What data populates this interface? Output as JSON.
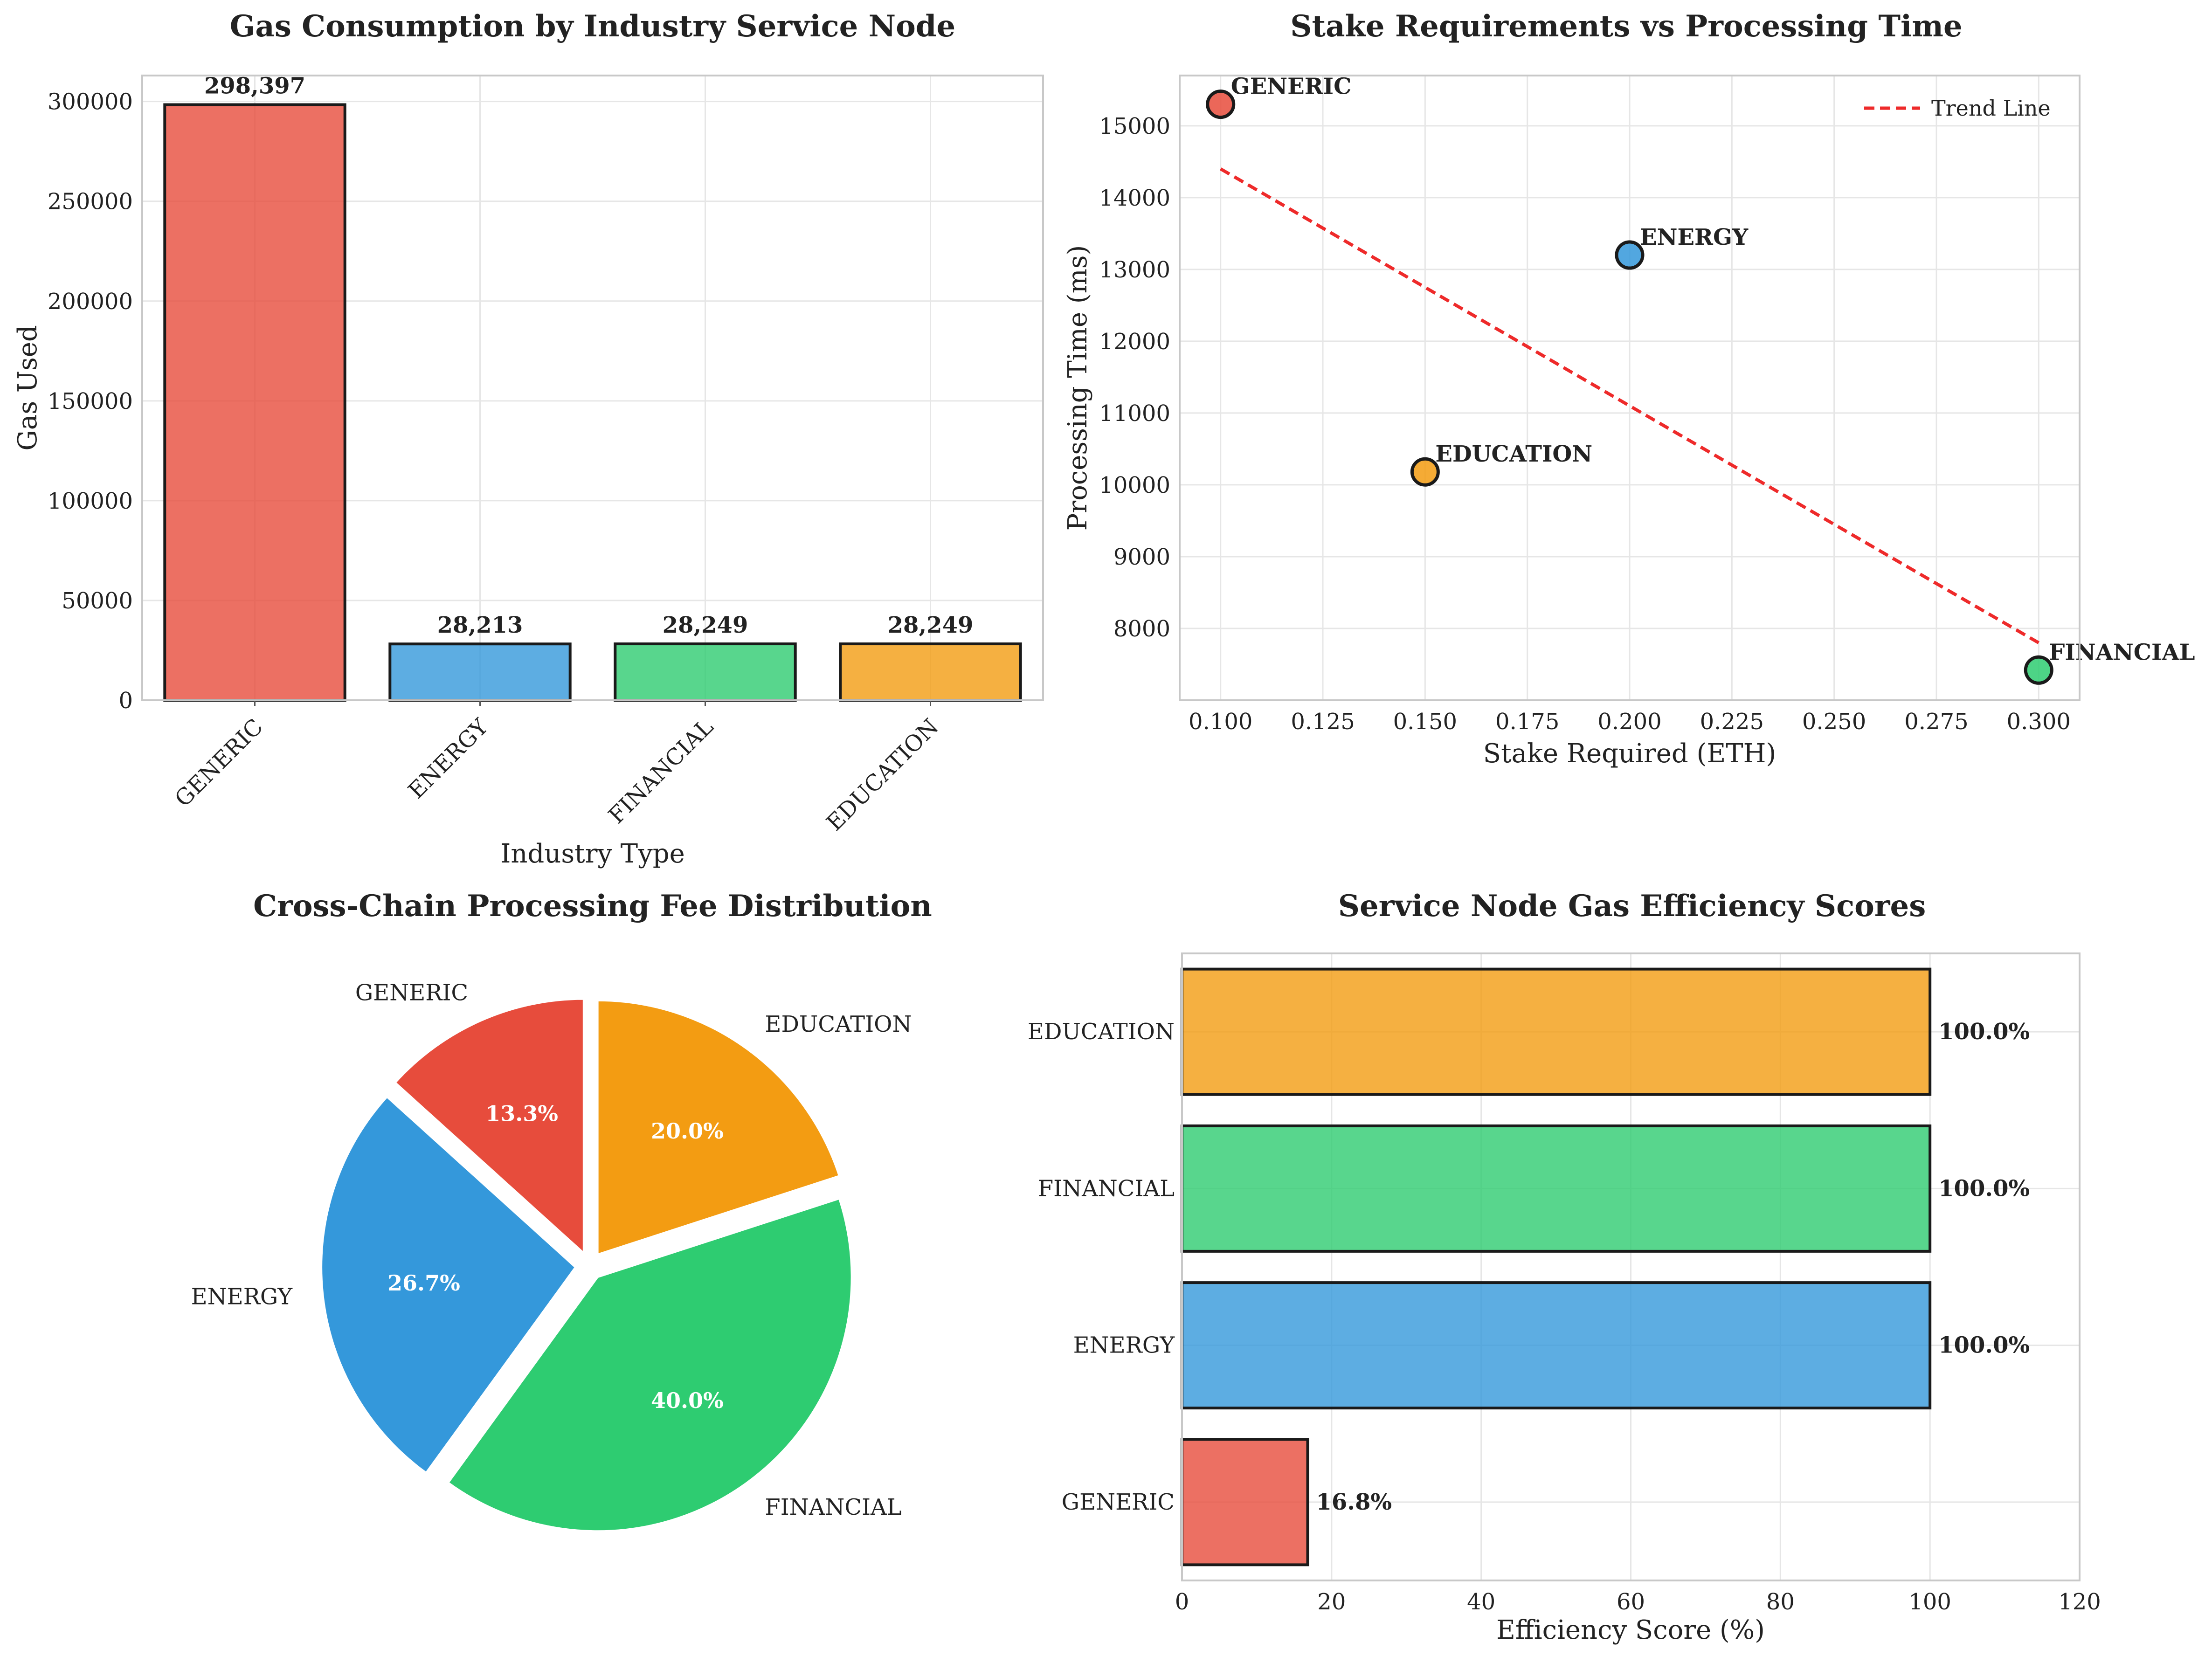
{
  "colors": {
    "GENERIC": "#e74c3c",
    "ENERGY": "#3498db",
    "FINANCIAL": "#2ecc71",
    "EDUCATION": "#f39c12",
    "trend": "#ee2a2a"
  },
  "chart_data": [
    {
      "type": "bar",
      "title": "Gas Consumption by Industry Service Node",
      "xlabel": "Industry Type",
      "ylabel": "Gas Used",
      "categories": [
        "GENERIC",
        "ENERGY",
        "FINANCIAL",
        "EDUCATION"
      ],
      "values": [
        298397,
        28213,
        28249,
        28249
      ],
      "value_labels": [
        "298,397",
        "28,213",
        "28,249",
        "28,249"
      ],
      "ylim": [
        0,
        313000
      ],
      "yticks": [
        0,
        50000,
        100000,
        150000,
        200000,
        250000,
        300000
      ],
      "ytick_labels": [
        "0",
        "50000",
        "100000",
        "150000",
        "200000",
        "250000",
        "300000"
      ],
      "grid": true
    },
    {
      "type": "scatter",
      "title": "Stake Requirements vs Processing Time",
      "xlabel": "Stake Required (ETH)",
      "ylabel": "Processing Time (ms)",
      "points": [
        {
          "label": "GENERIC",
          "x": 0.1,
          "y": 15300
        },
        {
          "label": "ENERGY",
          "x": 0.2,
          "y": 13200
        },
        {
          "label": "EDUCATION",
          "x": 0.15,
          "y": 10180
        },
        {
          "label": "FINANCIAL",
          "x": 0.3,
          "y": 7420
        }
      ],
      "trend": {
        "name": "Trend Line",
        "x": [
          0.1,
          0.3
        ],
        "y": [
          14400,
          7800
        ]
      },
      "xlim": [
        0.09,
        0.31
      ],
      "ylim": [
        7000,
        15700
      ],
      "xticks": [
        0.1,
        0.125,
        0.15,
        0.175,
        0.2,
        0.225,
        0.25,
        0.275,
        0.3
      ],
      "xtick_labels": [
        "0.100",
        "0.125",
        "0.150",
        "0.175",
        "0.200",
        "0.225",
        "0.250",
        "0.275",
        "0.300"
      ],
      "yticks": [
        8000,
        9000,
        10000,
        11000,
        12000,
        13000,
        14000,
        15000
      ],
      "ytick_labels": [
        "8000",
        "9000",
        "10000",
        "11000",
        "12000",
        "13000",
        "14000",
        "15000"
      ],
      "legend_position": "top-right",
      "grid": true
    },
    {
      "type": "pie",
      "title": "Cross-Chain Processing Fee Distribution",
      "slices": [
        {
          "label": "GENERIC",
          "value": 13.3,
          "pct_label": "13.3%"
        },
        {
          "label": "ENERGY",
          "value": 26.7,
          "pct_label": "26.7%"
        },
        {
          "label": "FINANCIAL",
          "value": 40.0,
          "pct_label": "40.0%"
        },
        {
          "label": "EDUCATION",
          "value": 20.0,
          "pct_label": "20.0%"
        }
      ]
    },
    {
      "type": "bar",
      "orientation": "horizontal",
      "title": "Service Node Gas Efficiency Scores",
      "xlabel": "Efficiency Score (%)",
      "categories": [
        "GENERIC",
        "ENERGY",
        "FINANCIAL",
        "EDUCATION"
      ],
      "values": [
        16.8,
        100.0,
        100.0,
        100.0
      ],
      "value_labels": [
        "16.8%",
        "100.0%",
        "100.0%",
        "100.0%"
      ],
      "xlim": [
        0,
        120
      ],
      "xticks": [
        0,
        20,
        40,
        60,
        80,
        100,
        120
      ],
      "xtick_labels": [
        "0",
        "20",
        "40",
        "60",
        "80",
        "100",
        "120"
      ],
      "grid": true
    }
  ]
}
